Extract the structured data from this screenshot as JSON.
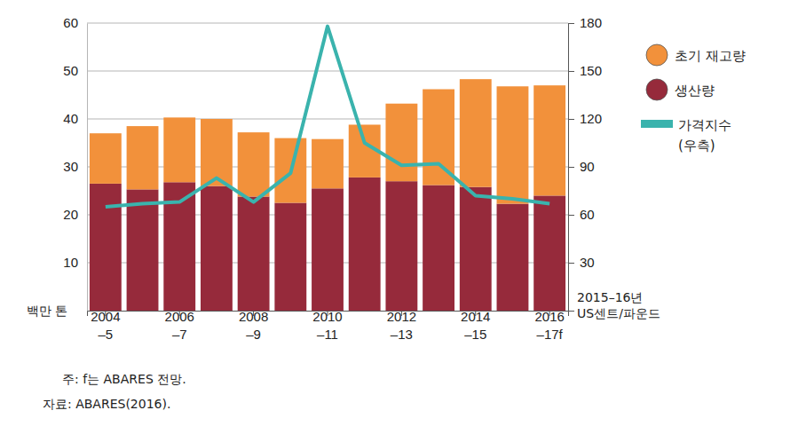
{
  "chart_data": {
    "type": "bar",
    "stacked": true,
    "grid": true,
    "legend": "right",
    "categories": [
      "2004\n–5",
      null,
      "2006\n–7",
      null,
      "2008\n–9",
      null,
      "2010\n–11",
      null,
      "2012\n–13",
      null,
      "2014\n–15",
      null,
      "2016\n–17f"
    ],
    "series": [
      {
        "name": "초기 재고량",
        "type": "bar",
        "color": "#f2913b",
        "values": [
          10.5,
          13.2,
          13.5,
          14,
          13.4,
          13.5,
          10.3,
          11,
          16.2,
          20,
          22.5,
          24.5,
          23
        ]
      },
      {
        "name": "생산량",
        "type": "bar",
        "color": "#962a3b",
        "values": [
          26.5,
          25.3,
          26.8,
          26,
          23.8,
          22.5,
          25.5,
          27.8,
          27,
          26.2,
          25.8,
          22.3,
          24
        ]
      },
      {
        "name": "가격지수\n(우측)",
        "type": "line",
        "axis": "y2",
        "color": "#3ab3ad",
        "values": [
          65,
          67,
          68,
          83,
          68,
          86,
          178,
          105,
          91,
          92,
          72,
          70,
          67
        ]
      }
    ],
    "ylim": [
      0,
      60
    ],
    "yticks": [
      10,
      20,
      30,
      40,
      50,
      60
    ],
    "y2lim": [
      0,
      180
    ],
    "y2ticks": [
      30,
      60,
      90,
      120,
      150,
      180
    ],
    "y_label": "백만 톤",
    "y2_label": "2015–16년\nUS센트/파운드",
    "notes": [
      "주: f는 ABARES 전망.",
      "자료: ABARES(2016)."
    ]
  }
}
